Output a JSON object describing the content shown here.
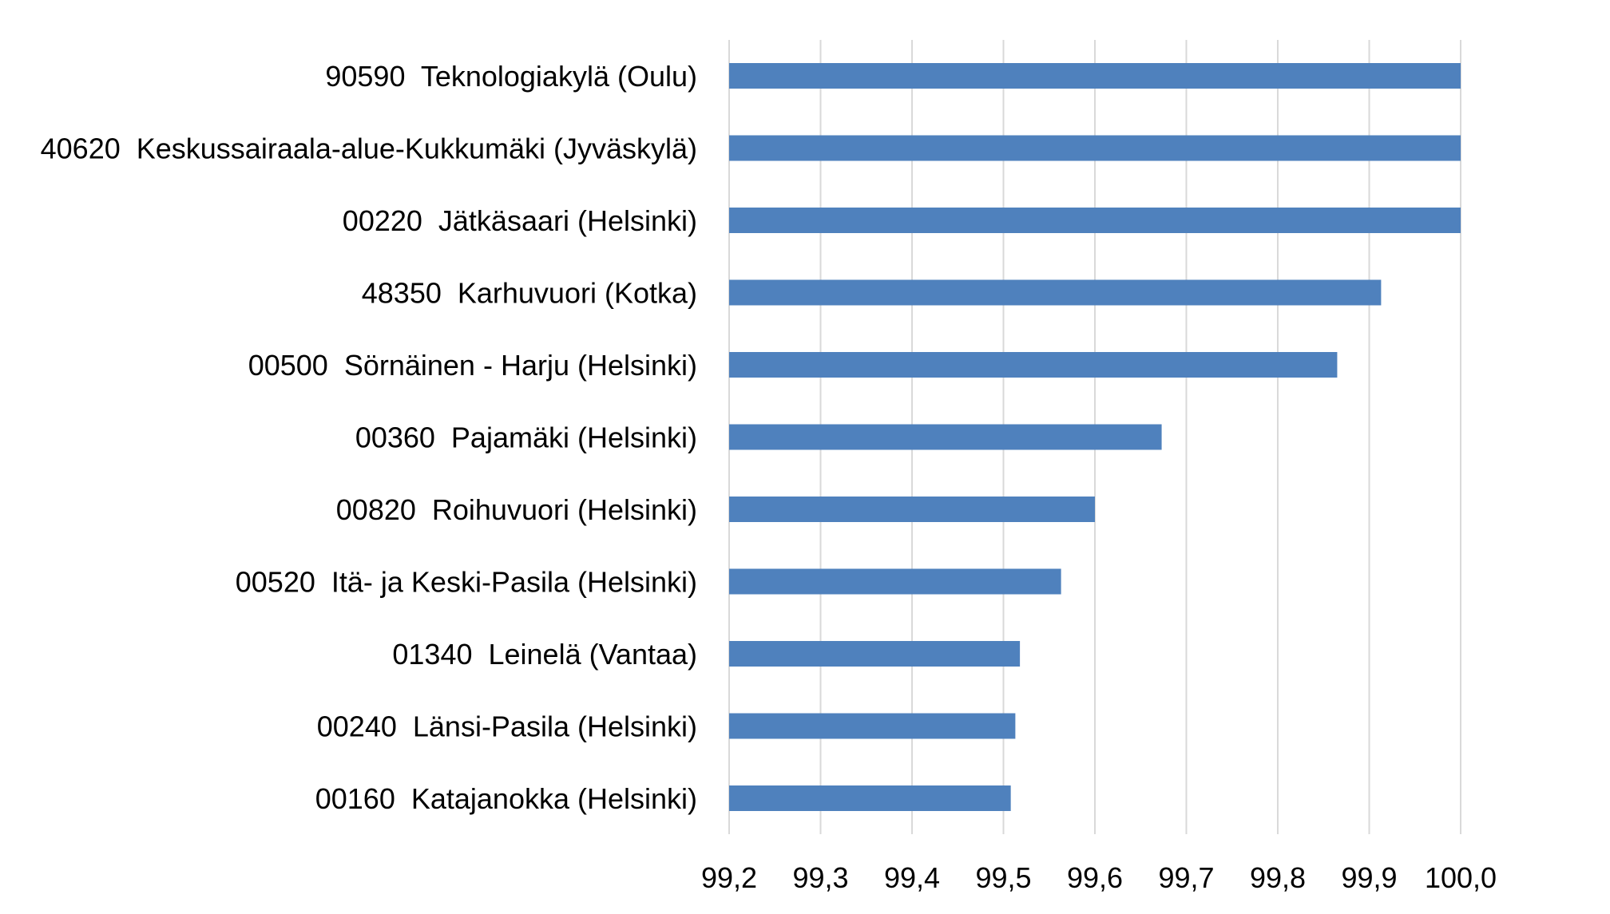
{
  "chart_data": {
    "type": "bar",
    "orientation": "horizontal",
    "title": "",
    "xlabel": "",
    "ylabel": "",
    "categories": [
      "90590  Teknologiakylä (Oulu)",
      "40620  Keskussairaala-alue-Kukkumäki (Jyväskylä)",
      "00220  Jätkäsaari (Helsinki)",
      "48350  Karhuvuori (Kotka)",
      "00500  Sörnäinen - Harju (Helsinki)",
      "00360  Pajamäki (Helsinki)",
      "00820  Roihuvuori (Helsinki)",
      "00520  Itä- ja Keski-Pasila (Helsinki)",
      "01340  Leinelä (Vantaa)",
      "00240  Länsi-Pasila (Helsinki)",
      "00160  Katajanokka (Helsinki)"
    ],
    "values": [
      100.0,
      100.0,
      100.0,
      99.913,
      99.865,
      99.673,
      99.6,
      99.563,
      99.518,
      99.513,
      99.508
    ],
    "xlim": [
      99.2,
      100.0
    ],
    "ticks": [
      "99,2",
      "99,3",
      "99,4",
      "99,5",
      "99,6",
      "99,7",
      "99,8",
      "99,9",
      "100,0"
    ],
    "tick_values": [
      99.2,
      99.3,
      99.4,
      99.5,
      99.6,
      99.7,
      99.8,
      99.9,
      100.0
    ],
    "grid": true,
    "legend": "none",
    "bar_color": "#4f81bd"
  }
}
